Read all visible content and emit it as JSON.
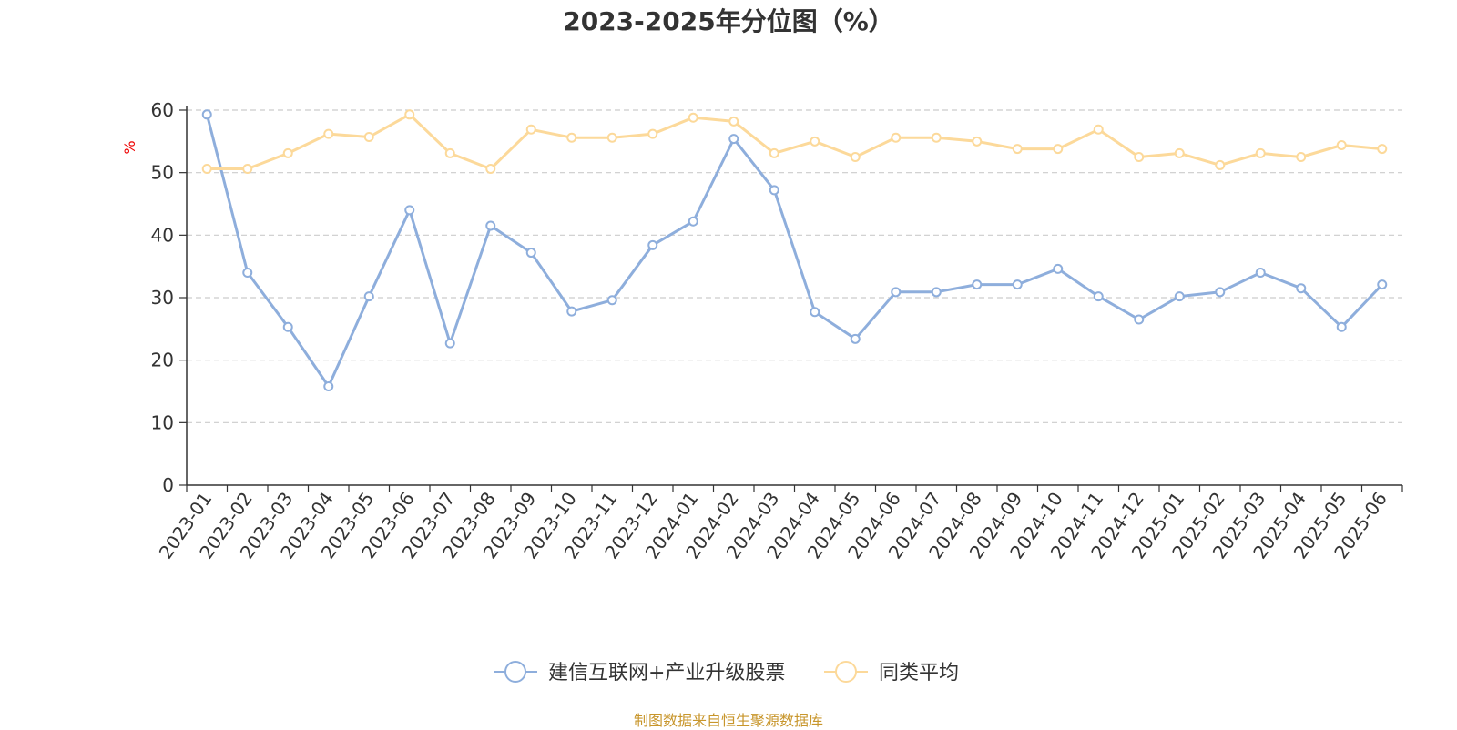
{
  "title": "2023-2025年分位图（%）",
  "footer": "制图数据来自恒生聚源数据库",
  "chart_data": {
    "type": "line",
    "ylabel": "%",
    "ylim": [
      0,
      60
    ],
    "yticks": [
      "0",
      "10",
      "20",
      "30",
      "40",
      "50",
      "60"
    ],
    "grid": true,
    "legend_position": "bottom-center",
    "categories": [
      "2023-01",
      "2023-02",
      "2023-03",
      "2023-04",
      "2023-05",
      "2023-06",
      "2023-07",
      "2023-08",
      "2023-09",
      "2023-10",
      "2023-11",
      "2023-12",
      "2024-01",
      "2024-02",
      "2024-03",
      "2024-04",
      "2024-05",
      "2024-06",
      "2024-07",
      "2024-08",
      "2024-09",
      "2024-10",
      "2024-11",
      "2024-12",
      "2025-01",
      "2025-02",
      "2025-03",
      "2025-04",
      "2025-05",
      "2025-06"
    ],
    "series": [
      {
        "name": "建信互联网+产业升级股票",
        "color": "#8eaedc",
        "values": [
          59.3,
          34.0,
          25.3,
          15.8,
          30.2,
          44.0,
          22.7,
          41.5,
          37.2,
          27.8,
          29.6,
          38.4,
          42.2,
          55.4,
          47.2,
          27.7,
          23.4,
          30.9,
          30.9,
          32.1,
          32.1,
          34.6,
          30.2,
          26.5,
          30.2,
          30.9,
          34.0,
          31.5,
          25.3,
          32.1
        ]
      },
      {
        "name": "同类平均",
        "color": "#fcd99a",
        "values": [
          50.6,
          50.6,
          53.1,
          56.2,
          55.7,
          59.3,
          53.1,
          50.6,
          56.9,
          55.6,
          55.6,
          56.2,
          58.8,
          58.2,
          53.1,
          55.0,
          52.5,
          55.6,
          55.6,
          55.0,
          53.8,
          53.8,
          56.9,
          52.5,
          53.1,
          51.2,
          53.1,
          52.5,
          54.4,
          53.8
        ]
      }
    ]
  }
}
